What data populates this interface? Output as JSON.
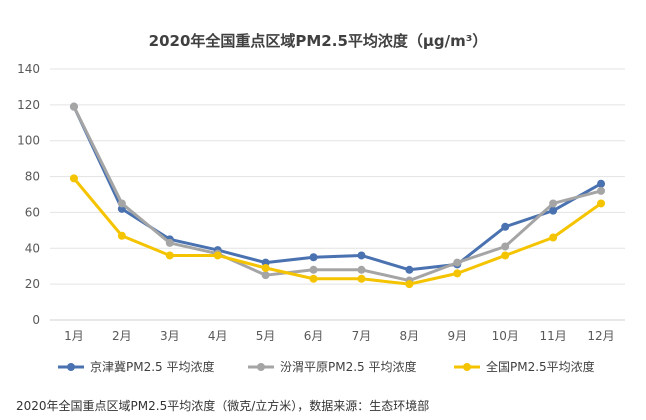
{
  "chart_data": {
    "type": "line",
    "title": "2020年全国重点区域PM2.5平均浓度（μg/m³）",
    "xlabel": "",
    "ylabel": "",
    "categories": [
      "1月",
      "2月",
      "3月",
      "4月",
      "5月",
      "6月",
      "7月",
      "8月",
      "9月",
      "10月",
      "11月",
      "12月"
    ],
    "ylim": [
      0,
      140
    ],
    "yticks": [
      0,
      20,
      40,
      60,
      80,
      100,
      120,
      140
    ],
    "ytick_labels": [
      "0",
      "20",
      "40",
      "60",
      "80",
      "100",
      "120",
      "140"
    ],
    "grid": true,
    "legend_position": "bottom",
    "series": [
      {
        "name": "京津冀PM2.5 平均浓度",
        "color": "#4a72b0",
        "values": [
          119,
          62,
          45,
          39,
          32,
          35,
          36,
          28,
          31,
          52,
          61,
          76
        ]
      },
      {
        "name": "汾渭平原PM2.5 平均浓度",
        "color": "#a5a5a5",
        "values": [
          119,
          65,
          43,
          37,
          25,
          28,
          28,
          22,
          32,
          41,
          65,
          72
        ]
      },
      {
        "name": "全国PM2.5平均浓度",
        "color": "#f5c400",
        "values": [
          79,
          47,
          36,
          36,
          29,
          23,
          23,
          20,
          26,
          36,
          46,
          65
        ]
      }
    ],
    "source_note": "2020年全国重点区域PM2.5平均浓度（微克/立方米），数据来源：生态环境部"
  }
}
